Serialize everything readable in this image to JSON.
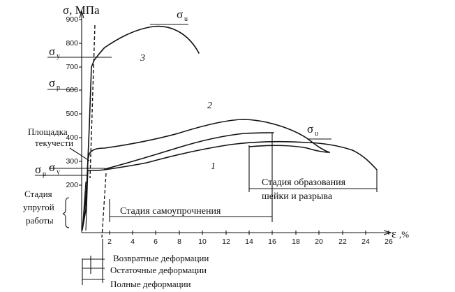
{
  "y_axis_label": "σ, МПа",
  "x_axis_symbol": "ε",
  "x_axis_unit": ",%",
  "y_ticks": [
    "200",
    "300",
    "400",
    "500",
    "600",
    "700",
    "800",
    "900"
  ],
  "x_ticks": [
    "2",
    "4",
    "6",
    "8",
    "10",
    "12",
    "14",
    "16",
    "18",
    "20",
    "22",
    "24",
    "26"
  ],
  "sigma": "σ",
  "sub_y": "y",
  "sub_p": "p",
  "sub_u": "u",
  "curve_labels": [
    "1",
    "2",
    "3"
  ],
  "plateau_label": [
    "Площадка",
    "текучести"
  ],
  "elastic_stage": [
    "Стадия",
    "упругой",
    "работы"
  ],
  "hardening_stage": "Стадия самоупрочнения",
  "necking_stage": [
    "Стадия образования",
    "шейки и разрыва"
  ],
  "deformations": [
    "Возвратные деформации",
    "Остаточные деформации",
    "Полные деформации"
  ]
}
